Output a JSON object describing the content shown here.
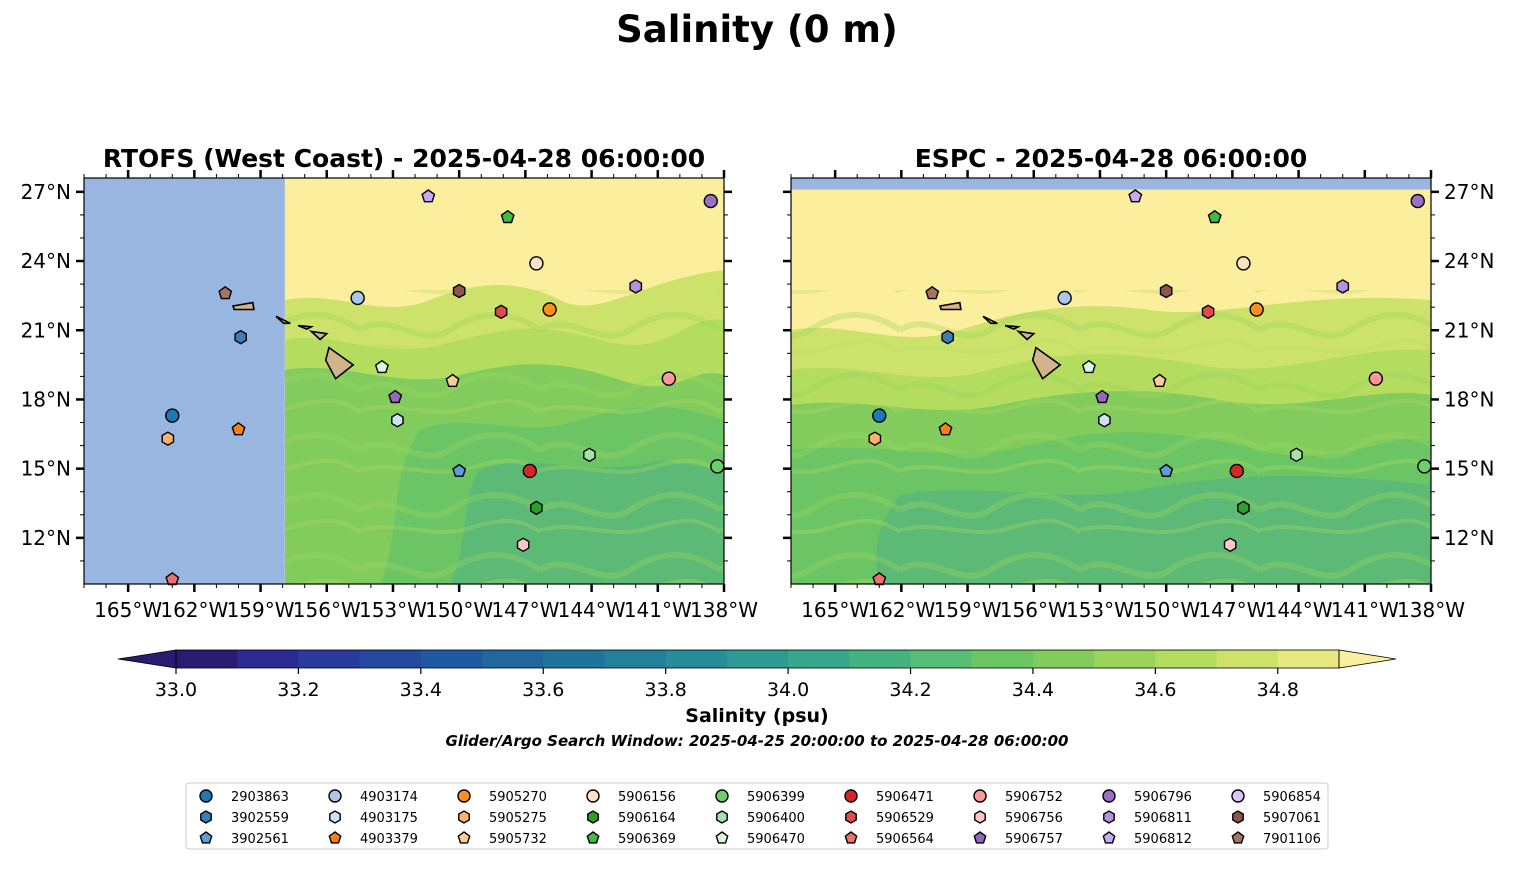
{
  "figure": {
    "title": "Salinity (0 m)",
    "search_window": "Glider/Argo Search Window: 2025-04-25 20:00:00 to 2025-04-28 06:00:00"
  },
  "chart_data": [
    {
      "type": "heatmap",
      "panel": "left",
      "title": "RTOFS (West Coast) - 2025-04-28 06:00:00",
      "variable": "Salinity (psu)",
      "xlim": [
        -167,
        -138
      ],
      "ylim": [
        10,
        27.6
      ],
      "lat_ticks": [
        "27°N",
        "24°N",
        "21°N",
        "18°N",
        "15°N",
        "12°N"
      ],
      "lon_ticks": [
        "165°W",
        "162°W",
        "159°W",
        "156°W",
        "153°W",
        "150°W",
        "147°W",
        "144°W",
        "141°W",
        "138°W"
      ],
      "lat_tick_axis_side": "left",
      "no_data_west_of_lon": -157.9,
      "field_summary": "Fresher water (~34.4-34.6) in the south, saltier (>34.8) north of about 22°N"
    },
    {
      "type": "heatmap",
      "panel": "right",
      "title": "ESPC - 2025-04-28 06:00:00",
      "variable": "Salinity (psu)",
      "xlim": [
        -167,
        -138
      ],
      "ylim": [
        10,
        27.6
      ],
      "lat_ticks": [
        "27°N",
        "24°N",
        "21°N",
        "18°N",
        "15°N",
        "12°N"
      ],
      "lon_ticks": [
        "165°W",
        "162°W",
        "159°W",
        "156°W",
        "153°W",
        "150°W",
        "147°W",
        "144°W",
        "141°W",
        "138°W"
      ],
      "lat_tick_axis_side": "right",
      "no_data_north_of_lat": 27.1,
      "field_summary": "Fresher water (~34.3-34.6) in the south, saltier (>34.8) north of about 20°N"
    }
  ],
  "colorbar": {
    "label": "Salinity (psu)",
    "range": [
      33.0,
      34.9
    ],
    "step": 0.1,
    "ticks": [
      "33.0",
      "33.2",
      "33.4",
      "33.6",
      "33.8",
      "34.0",
      "34.2",
      "34.4",
      "34.6",
      "34.8"
    ],
    "extend": "both",
    "colors": [
      "#2a1b72",
      "#2c2a94",
      "#2a3b9e",
      "#244aa0",
      "#1f599f",
      "#1f679d",
      "#20749b",
      "#22809a",
      "#278d98",
      "#2d9a93",
      "#37a78b",
      "#44b381",
      "#58bd74",
      "#6cc565",
      "#82cc5e",
      "#9bd45b",
      "#b4dc5e",
      "#cde26b",
      "#e7e87f"
    ],
    "under_color": "#2a1b72",
    "over_color": "#fbee9c"
  },
  "colors": {
    "land": "#d2b48c",
    "no_data": "#98b6e0",
    "fresh_band": "#5cba76"
  },
  "floats": [
    {
      "id": "2903863",
      "lat": 17.3,
      "lon": -163.0,
      "color": "#1f77b4",
      "marker": "circle"
    },
    {
      "id": "3902559",
      "lat": 20.7,
      "lon": -159.9,
      "color": "#3c7fb8",
      "marker": "hexagon"
    },
    {
      "id": "3902561",
      "lat": 14.9,
      "lon": -150.0,
      "color": "#5a9fd8",
      "marker": "pentagon"
    },
    {
      "id": "4903174",
      "lat": 22.4,
      "lon": -154.6,
      "color": "#aec7e8",
      "marker": "circle"
    },
    {
      "id": "4903175",
      "lat": 17.1,
      "lon": -152.8,
      "color": "#cfe3f6",
      "marker": "hexagon"
    },
    {
      "id": "4903379",
      "lat": 16.7,
      "lon": -160.0,
      "color": "#ff7f0e",
      "marker": "pentagon"
    },
    {
      "id": "5905270",
      "lat": 21.9,
      "lon": -145.9,
      "color": "#ff8f1c",
      "marker": "circle"
    },
    {
      "id": "5905275",
      "lat": 16.3,
      "lon": -163.2,
      "color": "#ffb26b",
      "marker": "hexagon"
    },
    {
      "id": "5905732",
      "lat": 18.8,
      "lon": -150.3,
      "color": "#ffcc99",
      "marker": "pentagon"
    },
    {
      "id": "5906156",
      "lat": 23.9,
      "lon": -146.5,
      "color": "#fde0c5",
      "marker": "circle"
    },
    {
      "id": "5906164",
      "lat": 13.3,
      "lon": -146.5,
      "color": "#2ca02c",
      "marker": "hexagon"
    },
    {
      "id": "5906369",
      "lat": 25.9,
      "lon": -147.8,
      "color": "#3fbd3f",
      "marker": "pentagon"
    },
    {
      "id": "5906399",
      "lat": 15.1,
      "lon": -138.3,
      "color": "#6bcf6b",
      "marker": "circle"
    },
    {
      "id": "5906400",
      "lat": 15.6,
      "lon": -144.1,
      "color": "#a6e3a6",
      "marker": "hexagon"
    },
    {
      "id": "5906470",
      "lat": 19.4,
      "lon": -153.5,
      "color": "#d9f7d9",
      "marker": "pentagon"
    },
    {
      "id": "5906471",
      "lat": 14.9,
      "lon": -146.8,
      "color": "#d62728",
      "marker": "circle"
    },
    {
      "id": "5906529",
      "lat": 21.8,
      "lon": -148.1,
      "color": "#e04b4b",
      "marker": "hexagon"
    },
    {
      "id": "5906564",
      "lat": 10.2,
      "lon": -163.0,
      "color": "#f07070",
      "marker": "pentagon"
    },
    {
      "id": "5906752",
      "lat": 18.9,
      "lon": -140.5,
      "color": "#ff9896",
      "marker": "circle"
    },
    {
      "id": "5906756",
      "lat": 11.7,
      "lon": -147.1,
      "color": "#ffc7c6",
      "marker": "hexagon"
    },
    {
      "id": "5906757",
      "lat": 18.1,
      "lon": -152.9,
      "color": "#9467bd",
      "marker": "pentagon"
    },
    {
      "id": "5906796",
      "lat": 26.6,
      "lon": -138.6,
      "color": "#9a6fc4",
      "marker": "circle"
    },
    {
      "id": "5906811",
      "lat": 22.9,
      "lon": -142.0,
      "color": "#b393dd",
      "marker": "hexagon"
    },
    {
      "id": "5906812",
      "lat": 26.8,
      "lon": -151.4,
      "color": "#c8a9f5",
      "marker": "pentagon"
    },
    {
      "id": "5906854",
      "lat": null,
      "lon": null,
      "color": "#dcc4f6",
      "marker": "circle"
    },
    {
      "id": "5907061",
      "lat": 22.7,
      "lon": -150.0,
      "color": "#8c564b",
      "marker": "hexagon"
    },
    {
      "id": "7901106",
      "lat": 22.6,
      "lon": -160.6,
      "color": "#a67462",
      "marker": "pentagon"
    }
  ],
  "legend": {
    "columns": 9,
    "rows": 3,
    "placement": "bottom-center"
  }
}
